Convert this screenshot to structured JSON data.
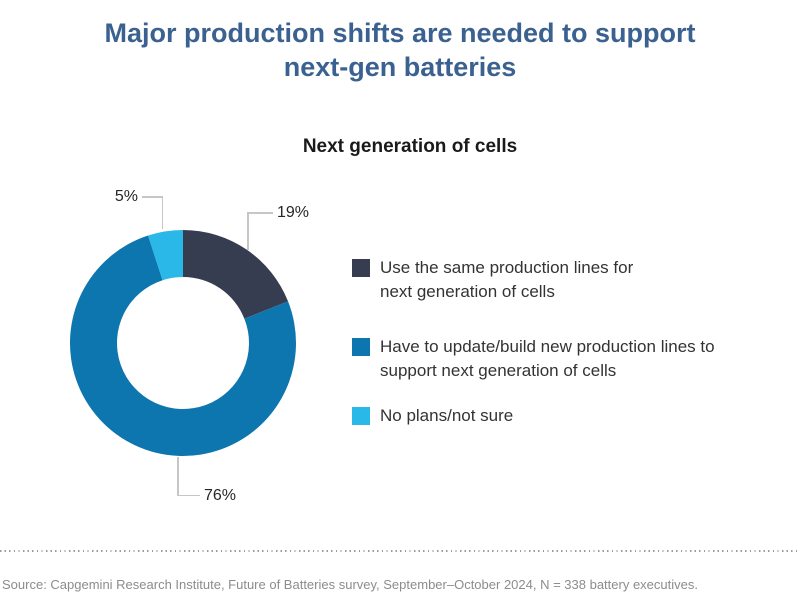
{
  "header": {
    "title": "Major production shifts are needed to support\nnext-gen batteries"
  },
  "chart_data": {
    "type": "pie",
    "subtype": "donut",
    "title": "Next generation of cells",
    "categories": [
      "Use the same production lines for next generation of cells",
      "Have to update/build new production lines to support next generation of cells",
      "No plans/not sure"
    ],
    "values": [
      19,
      76,
      5
    ],
    "unit": "%",
    "data_labels": [
      "19%",
      "76%",
      "5%"
    ],
    "colors": [
      "#373d51",
      "#0e76af",
      "#29b8e8"
    ],
    "start_angle_deg": 0,
    "direction": "clockwise",
    "donut_hole_ratio": 0.58,
    "legend_position": "right",
    "grid": false
  },
  "legend": {
    "items": [
      {
        "text": "Use the same production lines for\nnext generation of cells",
        "color": "#373d51"
      },
      {
        "text": "Have to update/build new production lines to\nsupport next generation of cells",
        "color": "#0e76af"
      },
      {
        "text": "No plans/not sure",
        "color": "#29b8e8"
      }
    ]
  },
  "callouts": {
    "label_5": "5%",
    "label_19": "19%",
    "label_76": "76%"
  },
  "footer": {
    "source": "Source: Capgemini Research Institute, Future of Batteries survey, September–October 2024, N = 338 battery executives."
  }
}
